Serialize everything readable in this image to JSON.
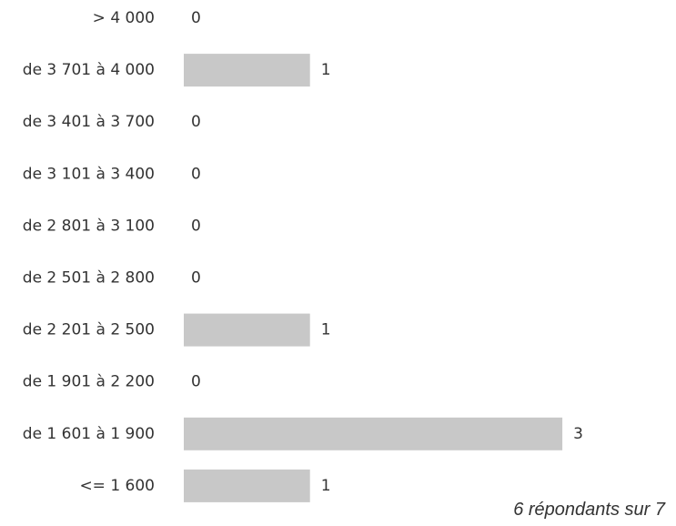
{
  "chart_data": {
    "type": "bar",
    "orientation": "horizontal",
    "categories": [
      "> 4 000",
      "de 3 701 à 4 000",
      "de 3 401 à 3 700",
      "de 3 101 à 3 400",
      "de 2 801 à 3 100",
      "de 2 501 à 2 800",
      "de 2 201 à 2 500",
      "de 1 901 à 2 200",
      "de 1 601 à 1 900",
      "<= 1 600"
    ],
    "values": [
      0,
      1,
      0,
      0,
      0,
      0,
      1,
      0,
      3,
      1
    ],
    "data_labels": [
      "0",
      "1",
      "0",
      "0",
      "0",
      "0",
      "1",
      "0",
      "3",
      "1"
    ],
    "xlim": [
      0,
      3
    ],
    "grid": false,
    "bar_color": "#c8c8c8",
    "text_color": "#333333"
  },
  "footer": {
    "note": "6 répondants sur 7"
  }
}
